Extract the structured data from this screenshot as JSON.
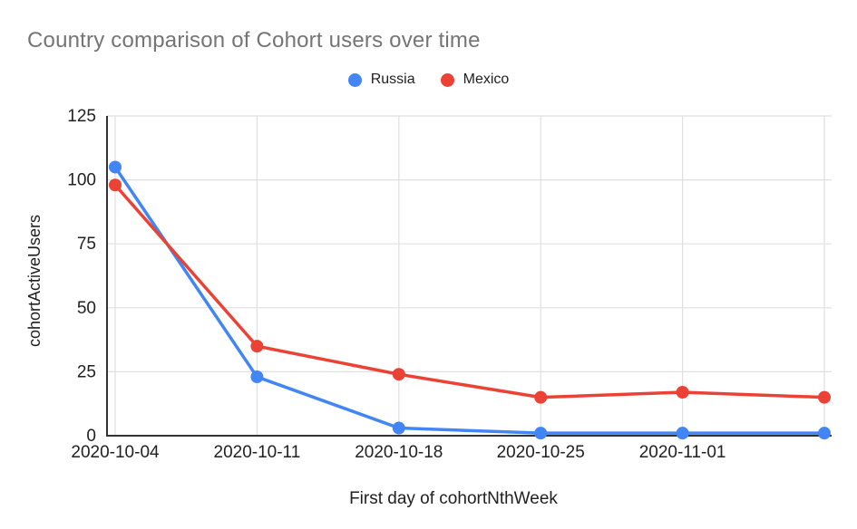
{
  "page": {
    "background": "#ffffff"
  },
  "chart_data": {
    "type": "line",
    "title": "Country comparison of Cohort users over time",
    "xlabel": "First day of cohortNthWeek",
    "ylabel": "cohortActiveUsers",
    "categories": [
      "2020-10-04",
      "2020-10-11",
      "2020-10-18",
      "2020-10-25",
      "2020-11-01",
      ""
    ],
    "series": [
      {
        "name": "Russia",
        "color": "#4285F4",
        "values": [
          105,
          23,
          3,
          1,
          1,
          1
        ]
      },
      {
        "name": "Mexico",
        "color": "#EA4335",
        "values": [
          98,
          35,
          24,
          15,
          17,
          15
        ]
      }
    ],
    "ylim": [
      0,
      125
    ],
    "yticks": [
      0,
      25,
      50,
      75,
      100,
      125
    ],
    "grid": true,
    "legend_position": "top",
    "colors": {
      "title_text": "#757575",
      "axis_text": "#212121",
      "gridline": "#e0e0e0",
      "axis_line": "#333333"
    }
  }
}
